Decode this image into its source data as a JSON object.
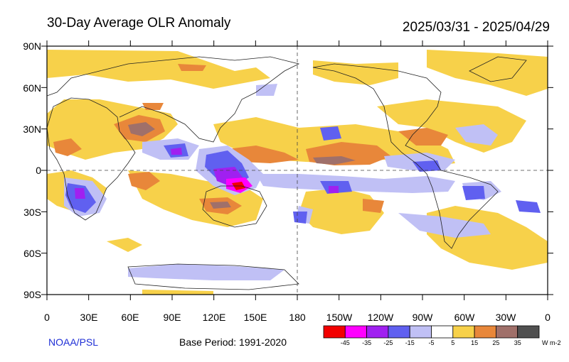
{
  "title": "30-Day Average OLR Anomaly",
  "date_range": "2025/03/31 - 2025/04/29",
  "credit": "NOAA/PSL",
  "base_period": "Base Period: 1991-2020",
  "colorbar": {
    "colors": [
      "#f20000",
      "#ff00ff",
      "#a020f0",
      "#6060f0",
      "#c0c0f5",
      "#ffffff",
      "#f7d14a",
      "#e8873a",
      "#a0706a",
      "#505050"
    ],
    "tick_labels": [
      "-45",
      "-35",
      "-25",
      "-15",
      "-5",
      "5",
      "15",
      "25",
      "35"
    ],
    "units": "W m-2"
  },
  "axes": {
    "y_labels": [
      "90N",
      "60N",
      "30N",
      "0",
      "30S",
      "60S",
      "90S"
    ],
    "x_labels": [
      "0",
      "30E",
      "60E",
      "90E",
      "120E",
      "150E",
      "180",
      "150W",
      "120W",
      "90W",
      "60W",
      "30W",
      "0"
    ]
  }
}
